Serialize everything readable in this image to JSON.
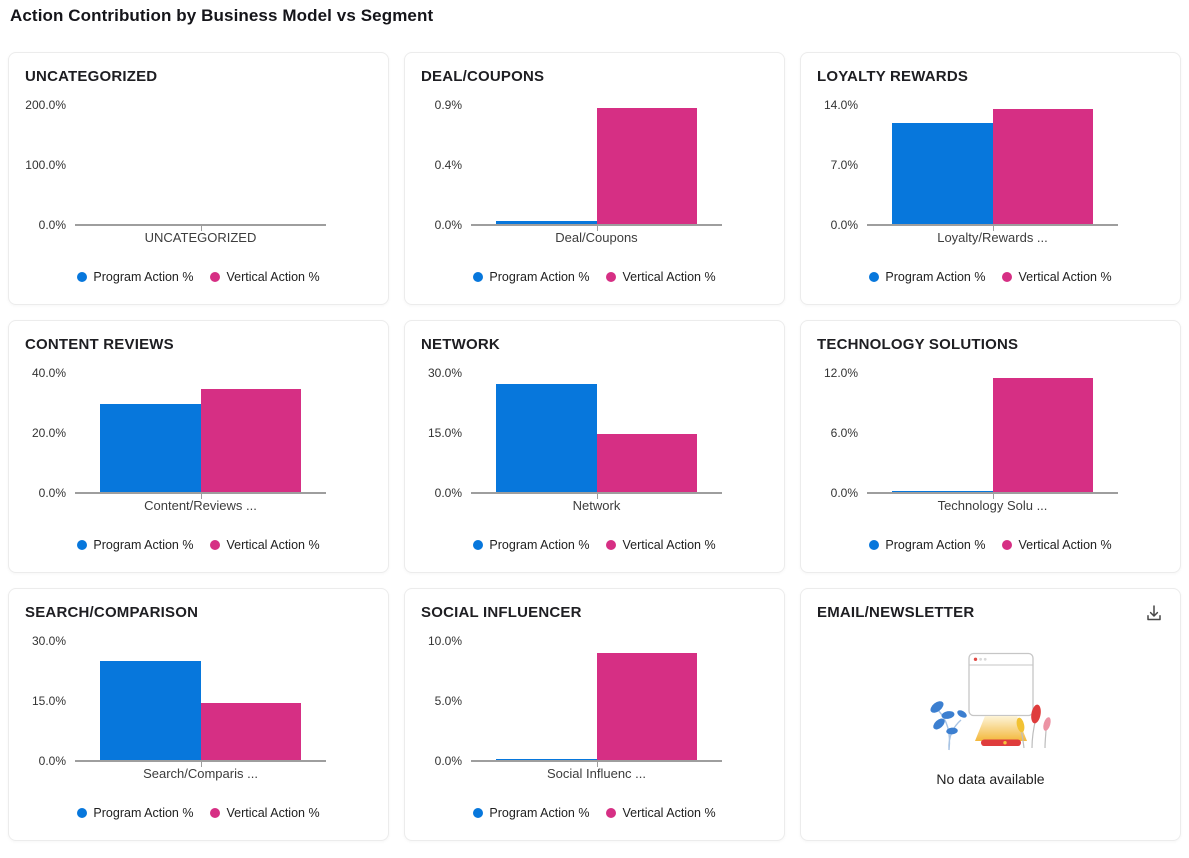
{
  "page": {
    "title": "Action Contribution by Business Model vs Segment"
  },
  "colors": {
    "program": "#0777dc",
    "vertical": "#d62f84",
    "axis": "#9e9e9e"
  },
  "chart_data": [
    {
      "type": "bar",
      "title": "UNCATEGORIZED",
      "categories": [
        "UNCATEGORIZED"
      ],
      "series": [
        {
          "name": "Program Action %",
          "values": [
            0
          ]
        },
        {
          "name": "Vertical Action %",
          "values": [
            0
          ]
        }
      ],
      "ylim": [
        0,
        200
      ],
      "yticks": [
        "200.0%",
        "100.0%",
        "0.0%"
      ],
      "legend_position": "bottom",
      "grid": false
    },
    {
      "type": "bar",
      "title": "DEAL/COUPONS",
      "categories": [
        "Deal/Coupons"
      ],
      "series": [
        {
          "name": "Program Action %",
          "values": [
            0.03
          ]
        },
        {
          "name": "Vertical Action %",
          "values": [
            0.88
          ]
        }
      ],
      "ylim": [
        0,
        0.9
      ],
      "yticks": [
        "0.9%",
        "0.4%",
        "0.0%"
      ],
      "legend_position": "bottom",
      "grid": false
    },
    {
      "type": "bar",
      "title": "LOYALTY REWARDS",
      "categories": [
        "Loyalty/Rewards ..."
      ],
      "series": [
        {
          "name": "Program Action %",
          "values": [
            11.9
          ]
        },
        {
          "name": "Vertical Action %",
          "values": [
            13.5
          ]
        }
      ],
      "ylim": [
        0,
        14
      ],
      "yticks": [
        "14.0%",
        "7.0%",
        "0.0%"
      ],
      "legend_position": "bottom",
      "grid": false
    },
    {
      "type": "bar",
      "title": "CONTENT REVIEWS",
      "categories": [
        "Content/Reviews ..."
      ],
      "series": [
        {
          "name": "Program Action %",
          "values": [
            29.8
          ]
        },
        {
          "name": "Vertical Action %",
          "values": [
            34.7
          ]
        }
      ],
      "ylim": [
        0,
        40
      ],
      "yticks": [
        "40.0%",
        "20.0%",
        "0.0%"
      ],
      "legend_position": "bottom",
      "grid": false
    },
    {
      "type": "bar",
      "title": "NETWORK",
      "categories": [
        "Network"
      ],
      "series": [
        {
          "name": "Program Action %",
          "values": [
            27.3
          ]
        },
        {
          "name": "Vertical Action %",
          "values": [
            14.8
          ]
        }
      ],
      "ylim": [
        0,
        30
      ],
      "yticks": [
        "30.0%",
        "15.0%",
        "0.0%"
      ],
      "legend_position": "bottom",
      "grid": false
    },
    {
      "type": "bar",
      "title": "TECHNOLOGY SOLUTIONS",
      "categories": [
        "Technology Solu ..."
      ],
      "series": [
        {
          "name": "Program Action %",
          "values": [
            0.05
          ]
        },
        {
          "name": "Vertical Action %",
          "values": [
            11.5
          ]
        }
      ],
      "ylim": [
        0,
        12
      ],
      "yticks": [
        "12.0%",
        "6.0%",
        "0.0%"
      ],
      "legend_position": "bottom",
      "grid": false
    },
    {
      "type": "bar",
      "title": "SEARCH/COMPARISON",
      "categories": [
        "Search/Comparis ..."
      ],
      "series": [
        {
          "name": "Program Action %",
          "values": [
            25.0
          ]
        },
        {
          "name": "Vertical Action %",
          "values": [
            14.4
          ]
        }
      ],
      "ylim": [
        0,
        30
      ],
      "yticks": [
        "30.0%",
        "15.0%",
        "0.0%"
      ],
      "legend_position": "bottom",
      "grid": false
    },
    {
      "type": "bar",
      "title": "SOCIAL INFLUENCER",
      "categories": [
        "Social Influenc ..."
      ],
      "series": [
        {
          "name": "Program Action %",
          "values": [
            0.02
          ]
        },
        {
          "name": "Vertical Action %",
          "values": [
            9.0
          ]
        }
      ],
      "ylim": [
        0,
        10
      ],
      "yticks": [
        "10.0%",
        "5.0%",
        "0.0%"
      ],
      "legend_position": "bottom",
      "grid": false
    },
    {
      "type": "none",
      "title": "EMAIL/NEWSLETTER",
      "no_data": true,
      "message": "No data available",
      "download_icon": "download-icon"
    }
  ]
}
